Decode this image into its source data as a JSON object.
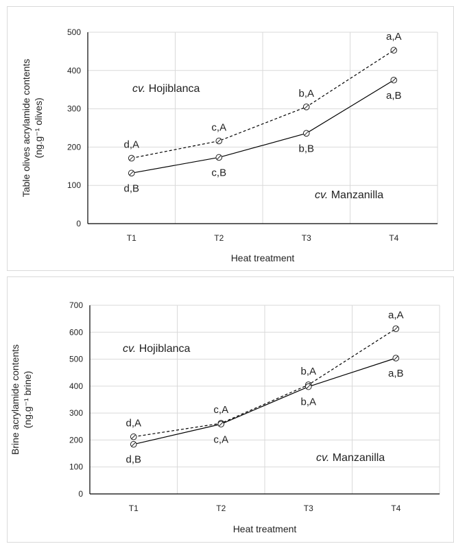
{
  "chart_data": [
    {
      "type": "line",
      "xlabel": "Heat treatment",
      "ylabel": [
        "Table olives acrylamide contents",
        "(ng.g⁻¹ olives)"
      ],
      "categories": [
        "T1",
        "T2",
        "T3",
        "T4"
      ],
      "ylim": [
        0,
        500
      ],
      "yticks": [
        0,
        100,
        200,
        300,
        400,
        500
      ],
      "grid": true,
      "series": [
        {
          "name": "cv. Hojiblanca",
          "style": "dashed",
          "values": [
            171,
            216,
            305,
            453
          ],
          "labels": [
            "d,A",
            "c,A",
            "b,A",
            "a,A"
          ],
          "label_position": "above"
        },
        {
          "name": "cv. Manzanilla",
          "style": "solid",
          "values": [
            132,
            173,
            236,
            375
          ],
          "labels": [
            "d,B",
            "c,B",
            "b,B",
            "a,B"
          ],
          "label_position": "below"
        }
      ],
      "annotations": [
        {
          "prefix": "cv.",
          "text": " Hojiblanca"
        },
        {
          "prefix": "cv.",
          "text": " Manzanilla"
        }
      ]
    },
    {
      "type": "line",
      "xlabel": "Heat treatment",
      "ylabel": [
        "Brine acrylamide contents",
        "(ng.g⁻¹ brine)"
      ],
      "categories": [
        "T1",
        "T2",
        "T3",
        "T4"
      ],
      "ylim": [
        0,
        700
      ],
      "yticks": [
        0,
        100,
        200,
        300,
        400,
        500,
        600,
        700
      ],
      "grid": true,
      "series": [
        {
          "name": "cv. Hojiblanca",
          "style": "dashed",
          "values": [
            212,
            262,
            405,
            613
          ],
          "labels": [
            "d,A",
            "c,A",
            "b,A",
            "a,A"
          ],
          "label_position": "above"
        },
        {
          "name": "cv. Manzanilla",
          "style": "solid",
          "values": [
            184,
            259,
            398,
            504
          ],
          "labels": [
            "d,B",
            "c,A",
            "b,A",
            "a,B"
          ],
          "label_position": "below"
        }
      ],
      "annotations": [
        {
          "prefix": "cv.",
          "text": " Hojiblanca"
        },
        {
          "prefix": "cv.",
          "text": " Manzanilla"
        }
      ]
    }
  ]
}
